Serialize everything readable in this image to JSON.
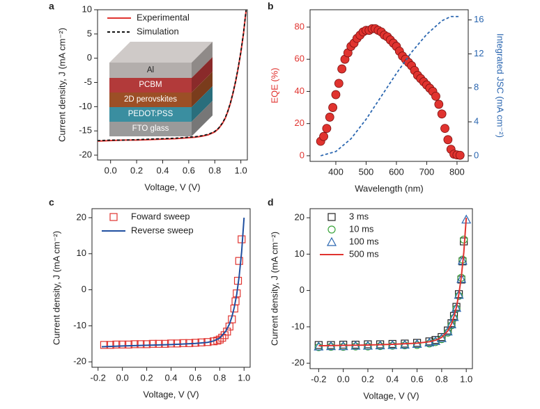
{
  "chart_data": [
    {
      "type": "line",
      "panel": "a",
      "xlabel": "Voltage, V (V)",
      "ylabel": "Current density, J (mA cm⁻²)",
      "xlim": [
        -0.1,
        1.05
      ],
      "ylim": [
        -21,
        10
      ],
      "xticks": [
        {
          "value": 0,
          "label": "0.0"
        },
        0.2,
        0.4,
        0.6,
        0.8,
        {
          "value": 1,
          "label": "1.0"
        }
      ],
      "yticks": [
        -20,
        -15,
        -10,
        -5,
        0,
        5,
        10
      ],
      "legend": "upper left",
      "inset_layers": [
        "Al",
        "PCBM",
        "2D perovskites",
        "PEDOT:PSS",
        "FTO glass"
      ],
      "series": [
        {
          "name": "Experimental",
          "color": "#e0332f",
          "marker": "line",
          "x": [
            -0.1,
            0,
            0.1,
            0.2,
            0.3,
            0.4,
            0.5,
            0.6,
            0.65,
            0.7,
            0.75,
            0.8,
            0.83,
            0.86,
            0.88,
            0.9,
            0.92,
            0.94,
            0.96,
            0.98,
            1.0,
            1.02,
            1.04
          ],
          "values": [
            -17.1,
            -17,
            -16.9,
            -16.9,
            -16.8,
            -16.7,
            -16.6,
            -16.4,
            -16.3,
            -16.1,
            -15.8,
            -15.2,
            -14.5,
            -13.4,
            -12.4,
            -11,
            -9.3,
            -7.2,
            -4.8,
            -2,
            1.2,
            5,
            9.8
          ]
        },
        {
          "name": "Simulation",
          "color": "#111111",
          "marker": "dashed",
          "x": [
            -0.1,
            0,
            0.1,
            0.2,
            0.3,
            0.4,
            0.5,
            0.6,
            0.65,
            0.7,
            0.75,
            0.8,
            0.83,
            0.86,
            0.88,
            0.9,
            0.92,
            0.94,
            0.96,
            0.98,
            1.0,
            1.02,
            1.04
          ],
          "values": [
            -17,
            -16.9,
            -16.9,
            -16.8,
            -16.7,
            -16.6,
            -16.5,
            -16.3,
            -16.2,
            -16,
            -15.7,
            -15.1,
            -14.4,
            -13.3,
            -12.3,
            -10.9,
            -9.2,
            -7.1,
            -4.7,
            -1.9,
            1.3,
            5.1,
            9.9
          ]
        }
      ]
    },
    {
      "type": "scatter",
      "panel": "b",
      "xlabel": "Wavelength (nm)",
      "ylabel": "EQE (%)",
      "y2label": "Integrated JSC (mA cm⁻²)",
      "ylabel_color": "#e0332f",
      "y2label_color": "#2a66b0",
      "xlim": [
        315,
        837
      ],
      "ylim": [
        -3.5,
        90.8
      ],
      "y2lim": [
        -0.66,
        17.2
      ],
      "xticks": [
        400,
        500,
        600,
        700,
        800
      ],
      "yticks": [
        0,
        20,
        40,
        60,
        80
      ],
      "y2ticks": [
        0,
        4,
        8,
        12,
        16
      ],
      "series": [
        {
          "color": "#e0332f",
          "marker": "circle",
          "filled": true,
          "x": [
            350,
            360,
            370,
            380,
            390,
            400,
            410,
            420,
            430,
            440,
            450,
            460,
            470,
            480,
            490,
            500,
            510,
            520,
            530,
            540,
            550,
            560,
            570,
            580,
            590,
            600,
            610,
            620,
            630,
            640,
            650,
            660,
            670,
            680,
            690,
            700,
            710,
            720,
            730,
            740,
            750,
            760,
            770,
            780,
            790,
            800,
            810
          ],
          "values": [
            9,
            12,
            17,
            24,
            30,
            38,
            45,
            54,
            60,
            64,
            68,
            70,
            73,
            75,
            77,
            78,
            78,
            79,
            79,
            78,
            77,
            75,
            74,
            72,
            70,
            68,
            65,
            62,
            60,
            58,
            56,
            53,
            50,
            48,
            46,
            44,
            42,
            40,
            37,
            32,
            26,
            17,
            10,
            4,
            1,
            0.5,
            0.3
          ]
        },
        {
          "color": "#2a66b0",
          "marker": "dashed",
          "axis": "y2",
          "x": [
            350,
            400,
            450,
            500,
            550,
            600,
            650,
            700,
            750,
            780,
            810
          ],
          "values": [
            0,
            0.5,
            2,
            4.3,
            7,
            9.7,
            12.2,
            14.3,
            15.9,
            16.4,
            16.4
          ]
        }
      ]
    },
    {
      "type": "scatter",
      "panel": "c",
      "xlabel": "Voltage, V (V)",
      "ylabel": "Current density, J (mA cm⁻²)",
      "xlim": [
        -0.25,
        1.05
      ],
      "ylim": [
        -21.5,
        22.5
      ],
      "xticks": [
        -0.2,
        {
          "value": 0,
          "label": "0.0"
        },
        0.2,
        0.4,
        0.6,
        0.8,
        {
          "value": 1,
          "label": "1.0"
        }
      ],
      "yticks": [
        -20,
        -10,
        0,
        10,
        20
      ],
      "legend": "upper left",
      "series": [
        {
          "name": "Foward sweep",
          "color": "#e0332f",
          "marker": "square",
          "x": [
            -0.15,
            -0.1,
            -0.05,
            0,
            0.05,
            0.1,
            0.15,
            0.2,
            0.25,
            0.3,
            0.35,
            0.4,
            0.45,
            0.5,
            0.55,
            0.6,
            0.65,
            0.7,
            0.75,
            0.78,
            0.8,
            0.82,
            0.84,
            0.86,
            0.88,
            0.9,
            0.92,
            0.93,
            0.94,
            0.95,
            0.96,
            0.98
          ],
          "values": [
            -15.3,
            -15.3,
            -15.2,
            -15.2,
            -15.2,
            -15.1,
            -15.1,
            -15.1,
            -15,
            -15,
            -15,
            -14.9,
            -14.9,
            -14.8,
            -14.8,
            -14.7,
            -14.6,
            -14.5,
            -14.3,
            -14.1,
            -13.8,
            -13.3,
            -12.6,
            -11.6,
            -10.2,
            -8.2,
            -5.2,
            -3.2,
            -1,
            2.5,
            8,
            14
          ]
        },
        {
          "name": "Reverse sweep",
          "color": "#1f4fa0",
          "marker": "line",
          "x": [
            -0.17,
            0,
            0.2,
            0.4,
            0.6,
            0.7,
            0.75,
            0.8,
            0.85,
            0.88,
            0.9,
            0.92,
            0.94,
            0.96,
            0.98,
            1.0
          ],
          "values": [
            -15.8,
            -15.6,
            -15.4,
            -15.2,
            -14.9,
            -14.6,
            -14.2,
            -13.4,
            -11.5,
            -9.5,
            -7.5,
            -4.8,
            -1.2,
            3.8,
            10.5,
            20
          ]
        }
      ]
    },
    {
      "type": "scatter",
      "panel": "d",
      "xlabel": "Voltage, V (V)",
      "ylabel": "Current density, J (mA cm⁻²)",
      "xlim": [
        -0.27,
        1.05
      ],
      "ylim": [
        -21.5,
        22.5
      ],
      "xticks": [
        -0.2,
        {
          "value": 0,
          "label": "0.0"
        },
        0.2,
        0.4,
        0.6,
        0.8,
        {
          "value": 1,
          "label": "1.0"
        }
      ],
      "yticks": [
        -20,
        -10,
        0,
        10,
        20
      ],
      "legend": "upper left",
      "series": [
        {
          "name": "3 ms",
          "color": "#222222",
          "marker": "square",
          "x": [
            -0.2,
            -0.1,
            0,
            0.1,
            0.2,
            0.3,
            0.4,
            0.5,
            0.6,
            0.7,
            0.75,
            0.8,
            0.85,
            0.88,
            0.9,
            0.92,
            0.94,
            0.96,
            0.97,
            0.98
          ],
          "values": [
            -15,
            -15,
            -14.9,
            -14.9,
            -14.8,
            -14.8,
            -14.7,
            -14.6,
            -14.4,
            -14,
            -13.6,
            -12.8,
            -11,
            -9,
            -7,
            -4.5,
            -1,
            3,
            8,
            13.5
          ]
        },
        {
          "name": "10 ms",
          "color": "#3aa43a",
          "marker": "circle",
          "x": [
            -0.2,
            -0.1,
            0,
            0.1,
            0.2,
            0.3,
            0.4,
            0.5,
            0.6,
            0.7,
            0.75,
            0.8,
            0.85,
            0.88,
            0.9,
            0.92,
            0.94,
            0.96,
            0.97,
            0.98
          ],
          "values": [
            -15.6,
            -15.5,
            -15.5,
            -15.4,
            -15.4,
            -15.3,
            -15.2,
            -15.1,
            -15,
            -14.6,
            -14.2,
            -13.4,
            -11.6,
            -9.6,
            -7.6,
            -5,
            -1.5,
            3.5,
            8.5,
            14
          ]
        },
        {
          "name": "100 ms",
          "color": "#2a66b0",
          "marker": "triangle",
          "x": [
            -0.2,
            -0.1,
            0,
            0.1,
            0.2,
            0.3,
            0.4,
            0.5,
            0.6,
            0.7,
            0.75,
            0.8,
            0.85,
            0.88,
            0.9,
            0.92,
            0.94,
            0.96,
            0.97,
            1.0
          ],
          "values": [
            -15.4,
            -15.3,
            -15.3,
            -15.2,
            -15.2,
            -15.1,
            -15,
            -14.9,
            -14.7,
            -14.3,
            -13.9,
            -13.1,
            -11.3,
            -9.3,
            -7.3,
            -4.8,
            -1.2,
            3.2,
            8.2,
            19.5
          ]
        },
        {
          "name": "500 ms",
          "color": "#e0332f",
          "marker": "line",
          "x": [
            -0.2,
            0,
            0.2,
            0.4,
            0.6,
            0.7,
            0.75,
            0.8,
            0.85,
            0.88,
            0.9,
            0.92,
            0.94,
            0.96,
            0.98,
            1.0
          ],
          "values": [
            -15.2,
            -15.1,
            -15,
            -14.8,
            -14.5,
            -14.1,
            -13.7,
            -12.9,
            -11.1,
            -9.2,
            -7.2,
            -4.6,
            -1,
            3.8,
            10.5,
            20
          ]
        }
      ]
    }
  ]
}
